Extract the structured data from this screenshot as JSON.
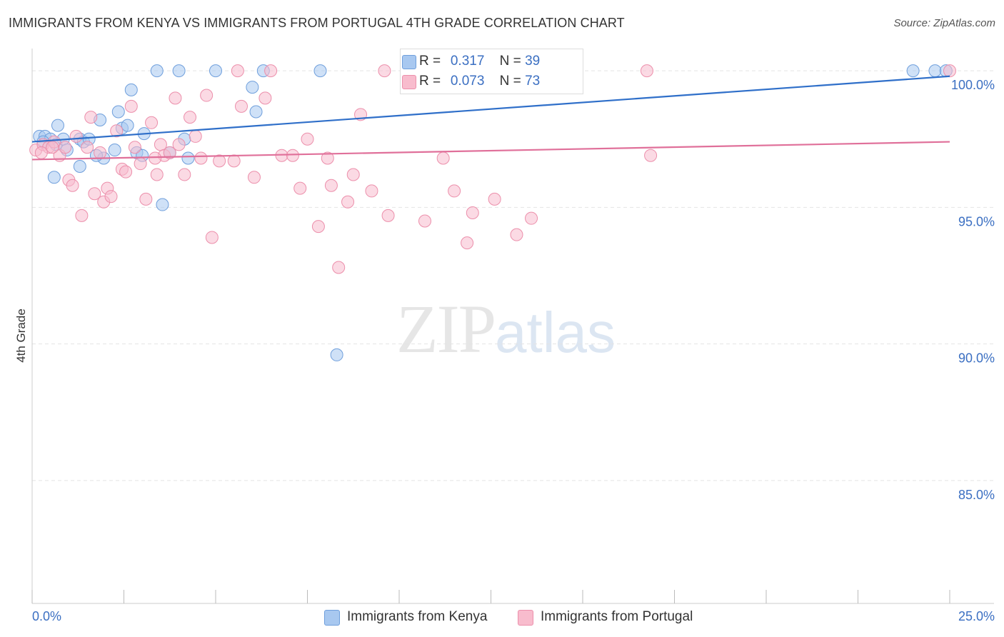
{
  "title": "IMMIGRANTS FROM KENYA VS IMMIGRANTS FROM PORTUGAL 4TH GRADE CORRELATION CHART",
  "source": "Source: ZipAtlas.com",
  "watermark": {
    "zip": "ZIP",
    "atlas": "atlas"
  },
  "stats": [
    {
      "r_label": "R =",
      "r_value": "0.317",
      "n_label": "N =",
      "n_value": "39",
      "color": "#a8c8f0",
      "border": "#6f9fdc"
    },
    {
      "r_label": "R =",
      "r_value": "0.073",
      "n_label": "N =",
      "n_value": "73",
      "color": "#f8bccd",
      "border": "#ec8fab"
    }
  ],
  "legend": [
    {
      "label": "Immigrants from Kenya",
      "color": "#a8c8f0",
      "border": "#6f9fdc"
    },
    {
      "label": "Immigrants from Portugal",
      "color": "#f8bccd",
      "border": "#ec8fab"
    }
  ],
  "chart_data": {
    "type": "scatter",
    "title": "IMMIGRANTS FROM KENYA VS IMMIGRANTS FROM PORTUGAL 4TH GRADE CORRELATION CHART",
    "xlabel": "",
    "ylabel": "4th Grade",
    "xlim": [
      0,
      25
    ],
    "ylim": [
      80.5,
      100.5
    ],
    "x_tick_labels": [
      "0.0%",
      "25.0%"
    ],
    "y_ticks": [
      85,
      90,
      95,
      100
    ],
    "y_tick_labels": [
      "85.0%",
      "90.0%",
      "95.0%",
      "100.0%"
    ],
    "grid": true,
    "legend_position": "bottom",
    "series": [
      {
        "name": "Immigrants from Kenya",
        "color": "#6f9fdc",
        "fill": "#a8c8f0",
        "trend": {
          "x0": 0,
          "y0": 97.4,
          "x1": 25,
          "y1": 99.8,
          "color": "#2f6fc9"
        },
        "points": [
          [
            0.2,
            97.6
          ],
          [
            0.35,
            97.6
          ],
          [
            0.5,
            97.5
          ],
          [
            0.65,
            97.3
          ],
          [
            0.7,
            98.0
          ],
          [
            0.85,
            97.5
          ],
          [
            0.95,
            97.1
          ],
          [
            1.3,
            97.5
          ],
          [
            1.3,
            96.5
          ],
          [
            1.4,
            97.4
          ],
          [
            1.55,
            97.5
          ],
          [
            1.85,
            98.2
          ],
          [
            1.95,
            96.8
          ],
          [
            2.25,
            97.1
          ],
          [
            2.35,
            98.5
          ],
          [
            2.45,
            97.9
          ],
          [
            2.6,
            98.0
          ],
          [
            2.7,
            99.3
          ],
          [
            2.85,
            97.0
          ],
          [
            3.0,
            96.9
          ],
          [
            3.05,
            97.7
          ],
          [
            3.4,
            100.0
          ],
          [
            3.55,
            95.1
          ],
          [
            3.75,
            97.0
          ],
          [
            4.0,
            100.0
          ],
          [
            4.15,
            97.5
          ],
          [
            4.25,
            96.8
          ],
          [
            5.0,
            100.0
          ],
          [
            6.0,
            99.4
          ],
          [
            6.1,
            98.5
          ],
          [
            6.3,
            100.0
          ],
          [
            7.85,
            100.0
          ],
          [
            8.3,
            89.6
          ],
          [
            24.0,
            100.0
          ],
          [
            24.6,
            100.0
          ],
          [
            24.9,
            100.0
          ],
          [
            0.3,
            97.4
          ],
          [
            0.6,
            96.1
          ],
          [
            1.75,
            96.9
          ]
        ]
      },
      {
        "name": "Immigrants from Portugal",
        "color": "#ec8fab",
        "fill": "#f8bccd",
        "trend": {
          "x0": 0,
          "y0": 96.75,
          "x1": 25,
          "y1": 97.4,
          "color": "#e0709a"
        },
        "points": [
          [
            0.1,
            97.1
          ],
          [
            0.3,
            97.3
          ],
          [
            0.45,
            97.2
          ],
          [
            0.6,
            97.4
          ],
          [
            0.75,
            96.9
          ],
          [
            0.9,
            97.2
          ],
          [
            1.0,
            96.0
          ],
          [
            1.1,
            95.8
          ],
          [
            1.2,
            97.6
          ],
          [
            1.35,
            94.7
          ],
          [
            1.5,
            97.2
          ],
          [
            1.6,
            98.3
          ],
          [
            1.7,
            95.5
          ],
          [
            1.85,
            97.0
          ],
          [
            1.95,
            95.2
          ],
          [
            2.05,
            95.7
          ],
          [
            2.15,
            95.4
          ],
          [
            2.3,
            97.8
          ],
          [
            2.45,
            96.4
          ],
          [
            2.55,
            96.3
          ],
          [
            2.7,
            98.7
          ],
          [
            2.8,
            97.2
          ],
          [
            2.95,
            96.6
          ],
          [
            3.1,
            95.3
          ],
          [
            3.25,
            98.1
          ],
          [
            3.4,
            96.2
          ],
          [
            3.5,
            97.3
          ],
          [
            3.6,
            96.9
          ],
          [
            3.75,
            97.0
          ],
          [
            3.9,
            99.0
          ],
          [
            4.0,
            97.3
          ],
          [
            4.15,
            96.2
          ],
          [
            4.3,
            98.3
          ],
          [
            4.45,
            97.6
          ],
          [
            4.6,
            96.8
          ],
          [
            4.75,
            99.1
          ],
          [
            4.9,
            93.9
          ],
          [
            5.1,
            96.7
          ],
          [
            5.5,
            96.7
          ],
          [
            5.6,
            100.0
          ],
          [
            5.7,
            98.7
          ],
          [
            6.05,
            96.1
          ],
          [
            6.35,
            99.0
          ],
          [
            6.5,
            100.0
          ],
          [
            6.8,
            96.9
          ],
          [
            7.1,
            96.9
          ],
          [
            7.3,
            95.7
          ],
          [
            7.5,
            97.5
          ],
          [
            7.8,
            94.3
          ],
          [
            8.05,
            96.8
          ],
          [
            8.15,
            95.8
          ],
          [
            8.35,
            92.8
          ],
          [
            8.6,
            95.2
          ],
          [
            8.75,
            96.2
          ],
          [
            8.95,
            98.4
          ],
          [
            9.25,
            95.6
          ],
          [
            9.6,
            100.0
          ],
          [
            9.7,
            94.7
          ],
          [
            10.7,
            94.5
          ],
          [
            11.2,
            96.8
          ],
          [
            11.5,
            95.6
          ],
          [
            11.85,
            93.7
          ],
          [
            12.0,
            94.8
          ],
          [
            12.6,
            95.3
          ],
          [
            13.2,
            94.0
          ],
          [
            13.6,
            94.6
          ],
          [
            13.85,
            100.0
          ],
          [
            16.75,
            100.0
          ],
          [
            16.85,
            96.9
          ],
          [
            25.0,
            100.0
          ],
          [
            0.25,
            97.0
          ],
          [
            0.55,
            97.2
          ],
          [
            3.35,
            96.8
          ]
        ]
      }
    ]
  }
}
